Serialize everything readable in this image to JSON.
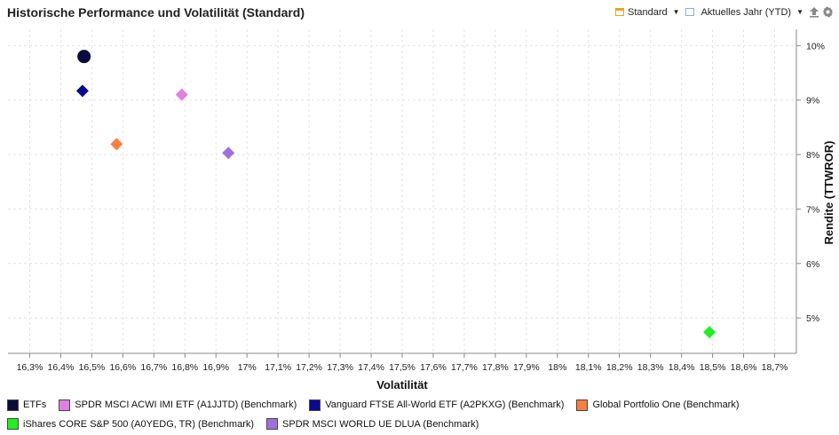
{
  "header": {
    "title": "Historische Performance und Volatilität (Standard)",
    "view_label": "Standard",
    "period_label": "Aktuelles Jahr (YTD)"
  },
  "chart_data": {
    "type": "scatter",
    "xlabel": "Volatilität",
    "ylabel": "Rendite (TTWROR)",
    "xlim": [
      16.23,
      18.77
    ],
    "ylim": [
      4.35,
      10.3
    ],
    "x_ticks": [
      16.3,
      16.4,
      16.5,
      16.6,
      16.7,
      16.8,
      16.9,
      17.0,
      17.1,
      17.2,
      17.3,
      17.4,
      17.5,
      17.6,
      17.7,
      17.8,
      17.9,
      18.0,
      18.1,
      18.2,
      18.3,
      18.4,
      18.5,
      18.6,
      18.7
    ],
    "x_tick_labels": [
      "16,3%",
      "16,4%",
      "16,5%",
      "16,6%",
      "16,7%",
      "16,8%",
      "16,9%",
      "17%",
      "17,1%",
      "17,2%",
      "17,3%",
      "17,4%",
      "17,5%",
      "17,6%",
      "17,7%",
      "17,8%",
      "17,9%",
      "18%",
      "18,1%",
      "18,2%",
      "18,3%",
      "18,4%",
      "18,5%",
      "18,6%",
      "18,7%"
    ],
    "y_ticks": [
      5,
      6,
      7,
      8,
      9,
      10
    ],
    "y_tick_labels": [
      "5%",
      "6%",
      "7%",
      "8%",
      "9%",
      "10%"
    ],
    "y_axis_position": "right",
    "grid": true,
    "legend_position": "bottom",
    "series": [
      {
        "name": "ETFs",
        "x": 16.475,
        "y": 9.8,
        "marker": "circle",
        "color": "#0b0b3d"
      },
      {
        "name": "SPDR MSCI ACWI IMI ETF (A1JJTD) (Benchmark)",
        "x": 16.79,
        "y": 9.1,
        "marker": "diamond",
        "color": "#e080e0"
      },
      {
        "name": "Vanguard FTSE All-World ETF (A2PKXG) (Benchmark)",
        "x": 16.47,
        "y": 9.17,
        "marker": "diamond",
        "color": "#0a0a8c"
      },
      {
        "name": "Global Portfolio One (Benchmark)",
        "x": 16.58,
        "y": 8.19,
        "marker": "diamond",
        "color": "#f58040"
      },
      {
        "name": "iShares CORE S&P 500 (A0YEDG, TR) (Benchmark)",
        "x": 18.49,
        "y": 4.74,
        "marker": "diamond",
        "color": "#22ee22"
      },
      {
        "name": "SPDR MSCI WORLD UE DLUA (Benchmark)",
        "x": 16.94,
        "y": 8.03,
        "marker": "diamond",
        "color": "#a070e0"
      }
    ]
  }
}
